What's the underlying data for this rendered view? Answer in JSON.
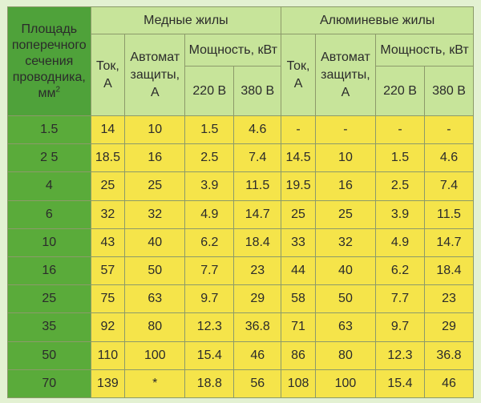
{
  "header": {
    "area_label_lines": [
      "Площадь",
      "поперечного",
      "сечения",
      "проводника,",
      "мм"
    ],
    "area_unit_sup": "2",
    "copper_title": "Медные жилы",
    "aluminum_title": "Алюминевые жилы",
    "current_label_lines": [
      "Ток,",
      "А"
    ],
    "breaker_label_lines": [
      "Автомат",
      "защиты,",
      "А"
    ],
    "power_label": "Мощность, кВт",
    "v220_label": "220 В",
    "v380_label": "380 В"
  },
  "rows": [
    {
      "area": "1.5",
      "cu_current": "14",
      "cu_breaker": "10",
      "cu_220": "1.5",
      "cu_380": "4.6",
      "al_current": "-",
      "al_breaker": "-",
      "al_220": "-",
      "al_380": "-"
    },
    {
      "area": "2 5",
      "cu_current": "18.5",
      "cu_breaker": "16",
      "cu_220": "2.5",
      "cu_380": "7.4",
      "al_current": "14.5",
      "al_breaker": "10",
      "al_220": "1.5",
      "al_380": "4.6"
    },
    {
      "area": "4",
      "cu_current": "25",
      "cu_breaker": "25",
      "cu_220": "3.9",
      "cu_380": "11.5",
      "al_current": "19.5",
      "al_breaker": "16",
      "al_220": "2.5",
      "al_380": "7.4"
    },
    {
      "area": "6",
      "cu_current": "32",
      "cu_breaker": "32",
      "cu_220": "4.9",
      "cu_380": "14.7",
      "al_current": "25",
      "al_breaker": "25",
      "al_220": "3.9",
      "al_380": "11.5"
    },
    {
      "area": "10",
      "cu_current": "43",
      "cu_breaker": "40",
      "cu_220": "6.2",
      "cu_380": "18.4",
      "al_current": "33",
      "al_breaker": "32",
      "al_220": "4.9",
      "al_380": "14.7"
    },
    {
      "area": "16",
      "cu_current": "57",
      "cu_breaker": "50",
      "cu_220": "7.7",
      "cu_380": "23",
      "al_current": "44",
      "al_breaker": "40",
      "al_220": "6.2",
      "al_380": "18.4"
    },
    {
      "area": "25",
      "cu_current": "75",
      "cu_breaker": "63",
      "cu_220": "9.7",
      "cu_380": "29",
      "al_current": "58",
      "al_breaker": "50",
      "al_220": "7.7",
      "al_380": "23"
    },
    {
      "area": "35",
      "cu_current": "92",
      "cu_breaker": "80",
      "cu_220": "12.3",
      "cu_380": "36.8",
      "al_current": "71",
      "al_breaker": "63",
      "al_220": "9.7",
      "al_380": "29"
    },
    {
      "area": "50",
      "cu_current": "110",
      "cu_breaker": "100",
      "cu_220": "15.4",
      "cu_380": "46",
      "al_current": "86",
      "al_breaker": "80",
      "al_220": "12.3",
      "al_380": "36.8"
    },
    {
      "area": "70",
      "cu_current": "139",
      "cu_breaker": "*",
      "cu_220": "18.8",
      "cu_380": "56",
      "al_current": "108",
      "al_breaker": "100",
      "al_220": "15.4",
      "al_380": "46"
    }
  ],
  "colors": {
    "area_column": "#5aab3a",
    "header_bg": "#c7e49a",
    "value_bg": "#f5e44a",
    "border": "#8c9a6a"
  }
}
